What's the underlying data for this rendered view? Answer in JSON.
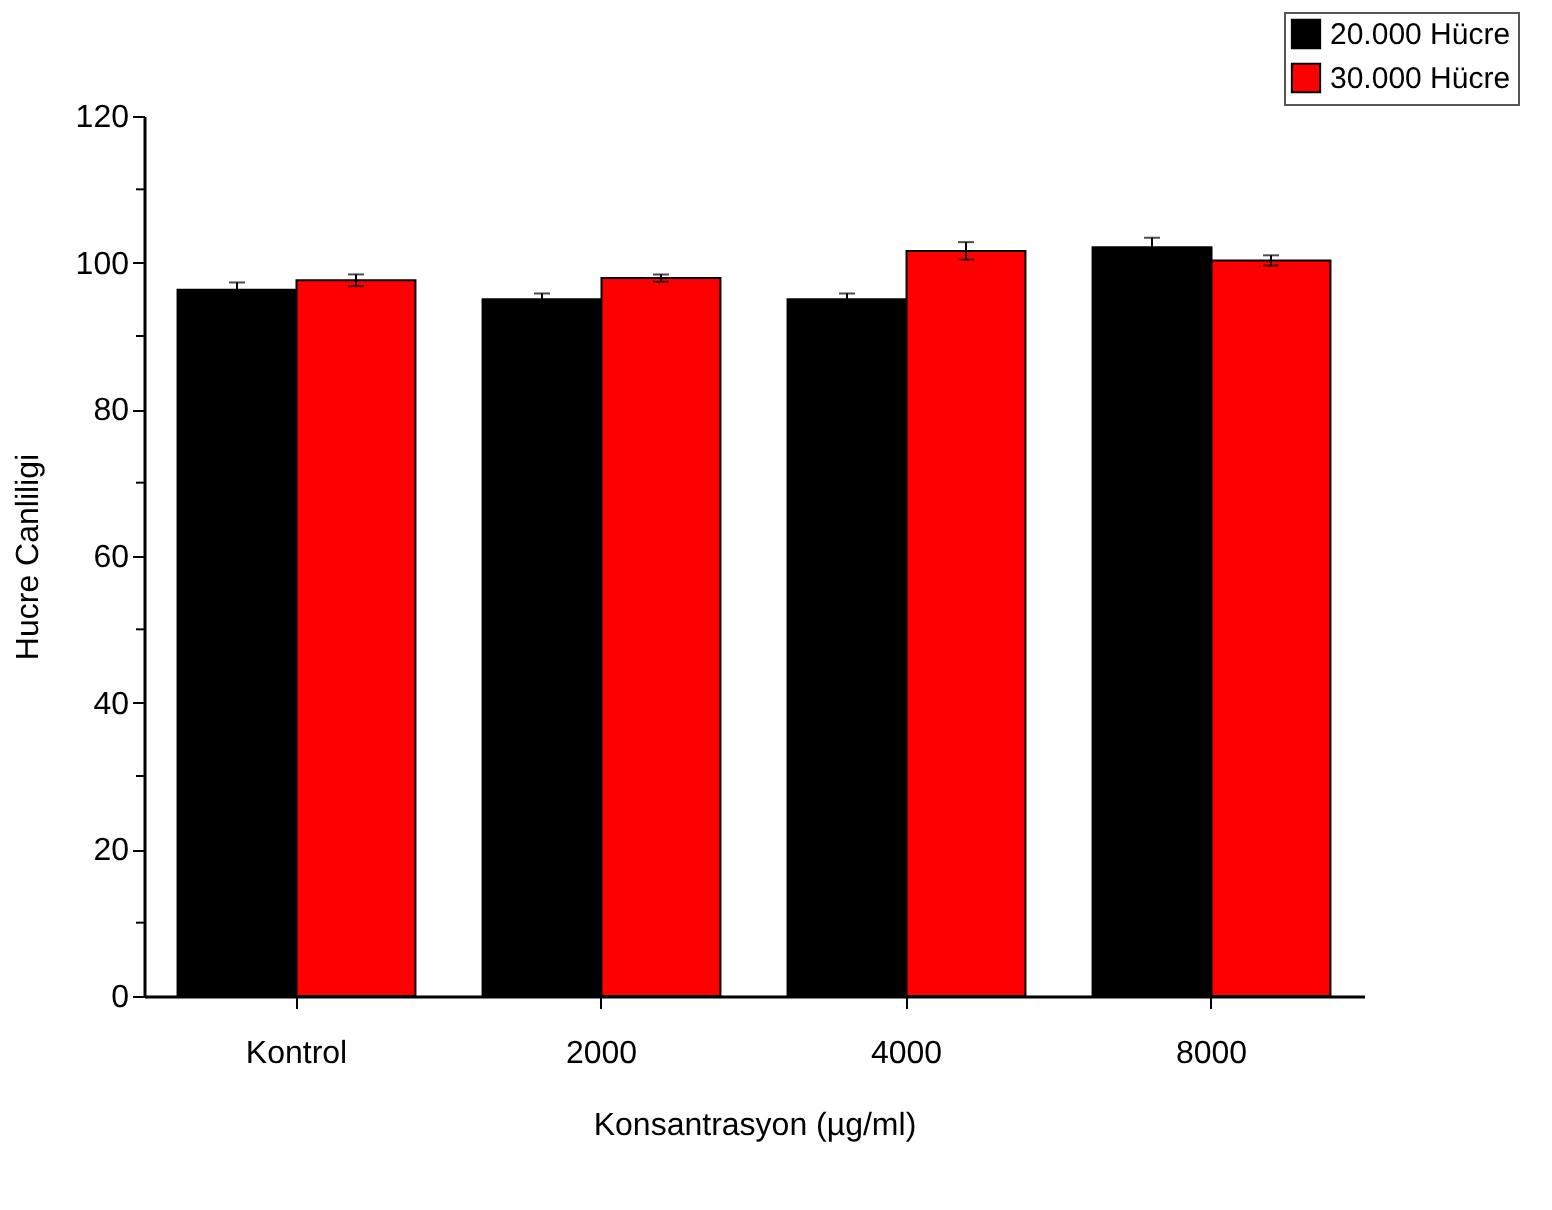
{
  "chart_data": {
    "type": "bar",
    "xlabel": "Konsantrasyon (µg/ml)",
    "ylabel": "Hucre Canliligi",
    "categories": [
      "Kontrol",
      "2000",
      "4000",
      "8000"
    ],
    "series": [
      {
        "name": "20.000 Hücre",
        "color": "#000000",
        "values": [
          96.3,
          95.0,
          95.0,
          102.1
        ],
        "errors": [
          1.0,
          0.8,
          0.8,
          1.3
        ]
      },
      {
        "name": "30.000 Hücre",
        "color": "#ff0000",
        "values": [
          97.6,
          97.9,
          101.6,
          100.3
        ],
        "errors": [
          0.8,
          0.5,
          1.2,
          0.7
        ]
      }
    ],
    "ylim": [
      0,
      120
    ],
    "yticks": [
      0,
      {
        "value": 10,
        "label": null
      },
      20,
      {
        "value": 30,
        "label": null
      },
      40,
      {
        "value": 50,
        "label": null
      },
      60,
      {
        "value": 70,
        "label": null
      },
      80,
      {
        "value": 90,
        "label": null
      },
      100,
      {
        "value": 110,
        "label": null
      },
      120
    ],
    "grid": false,
    "legend": "top right"
  }
}
